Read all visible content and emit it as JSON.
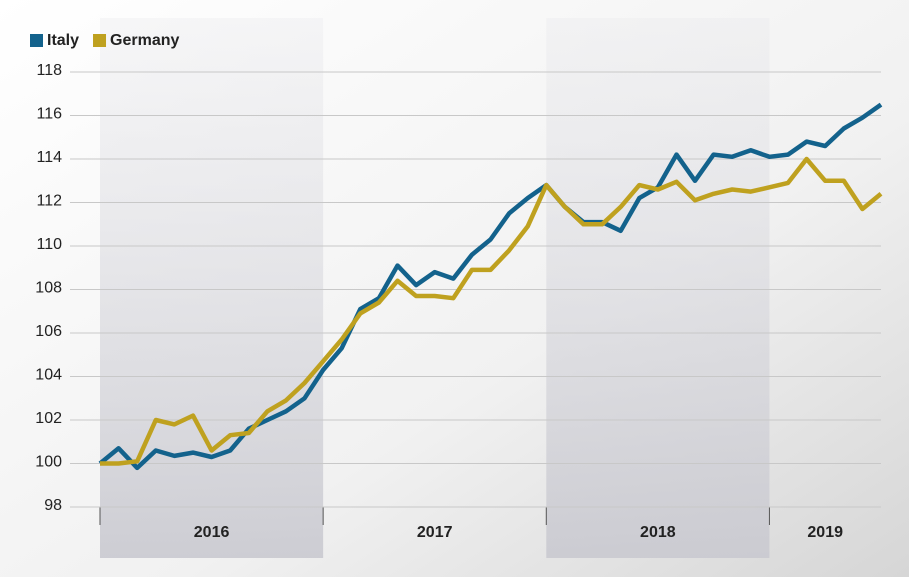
{
  "chart_data": {
    "type": "line",
    "years": [
      "2016",
      "2017",
      "2018",
      "2019"
    ],
    "series": [
      {
        "name": "Italy",
        "color": "#13628c",
        "values": [
          100,
          100.7,
          99.8,
          100.6,
          100.35,
          100.5,
          100.3,
          100.6,
          101.6,
          102.0,
          102.4,
          103.0,
          104.3,
          105.3,
          107.1,
          107.6,
          109.1,
          108.2,
          108.8,
          108.5,
          109.6,
          110.3,
          111.5,
          112.2,
          112.8,
          111.8,
          111.1,
          111.1,
          110.7,
          112.2,
          112.7,
          114.2,
          113.0,
          114.2,
          114.1,
          114.4,
          114.1,
          114.2,
          114.8,
          114.6,
          115.4,
          115.9,
          116.5
        ]
      },
      {
        "name": "Germany",
        "color": "#bfa11f",
        "values": [
          100,
          100,
          100.1,
          102.0,
          101.8,
          102.2,
          100.6,
          101.3,
          101.4,
          102.4,
          102.9,
          103.7,
          104.7,
          105.7,
          106.9,
          107.4,
          108.4,
          107.7,
          107.7,
          107.6,
          108.9,
          108.9,
          109.8,
          110.9,
          112.8,
          111.8,
          111.0,
          111.0,
          111.8,
          112.8,
          112.6,
          112.95,
          112.1,
          112.4,
          112.6,
          112.5,
          112.7,
          112.9,
          114.0,
          113.0,
          113.0,
          111.7,
          112.4
        ]
      }
    ],
    "ylim": [
      98,
      118
    ],
    "yticks": [
      98,
      100,
      102,
      104,
      106,
      108,
      110,
      112,
      114,
      116,
      118
    ],
    "grid": true
  }
}
